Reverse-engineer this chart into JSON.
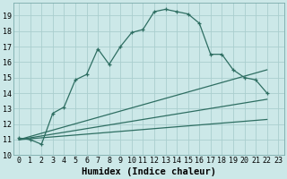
{
  "xlabel": "Humidex (Indice chaleur)",
  "bg_color": "#cce8e8",
  "grid_color": "#aacece",
  "line_color": "#2e6e62",
  "xlim": [
    -0.5,
    23.5
  ],
  "ylim": [
    10.0,
    19.8
  ],
  "yticks": [
    10,
    11,
    12,
    13,
    14,
    15,
    16,
    17,
    18,
    19
  ],
  "xticks": [
    0,
    1,
    2,
    3,
    4,
    5,
    6,
    7,
    8,
    9,
    10,
    11,
    12,
    13,
    14,
    15,
    16,
    17,
    18,
    19,
    20,
    21,
    22,
    23
  ],
  "main_line_x": [
    0,
    1,
    2,
    3,
    4,
    5,
    6,
    7,
    8,
    9,
    10,
    11,
    12,
    13,
    14,
    15,
    16,
    17,
    18,
    19,
    20,
    21,
    22
  ],
  "main_line_y": [
    11.1,
    11.0,
    10.7,
    12.7,
    13.1,
    14.85,
    15.2,
    16.85,
    15.85,
    17.0,
    17.9,
    18.1,
    19.25,
    19.4,
    19.25,
    19.1,
    18.5,
    16.5,
    16.5,
    15.5,
    15.0,
    14.85,
    14.0
  ],
  "lower_line1_x": [
    0,
    22
  ],
  "lower_line1_y": [
    11.0,
    15.5
  ],
  "lower_line2_x": [
    0,
    22
  ],
  "lower_line2_y": [
    11.0,
    13.6
  ],
  "lower_line3_x": [
    0,
    22
  ],
  "lower_line3_y": [
    11.0,
    12.3
  ],
  "xlabel_fontsize": 7.5,
  "tick_fontsize": 6.0
}
